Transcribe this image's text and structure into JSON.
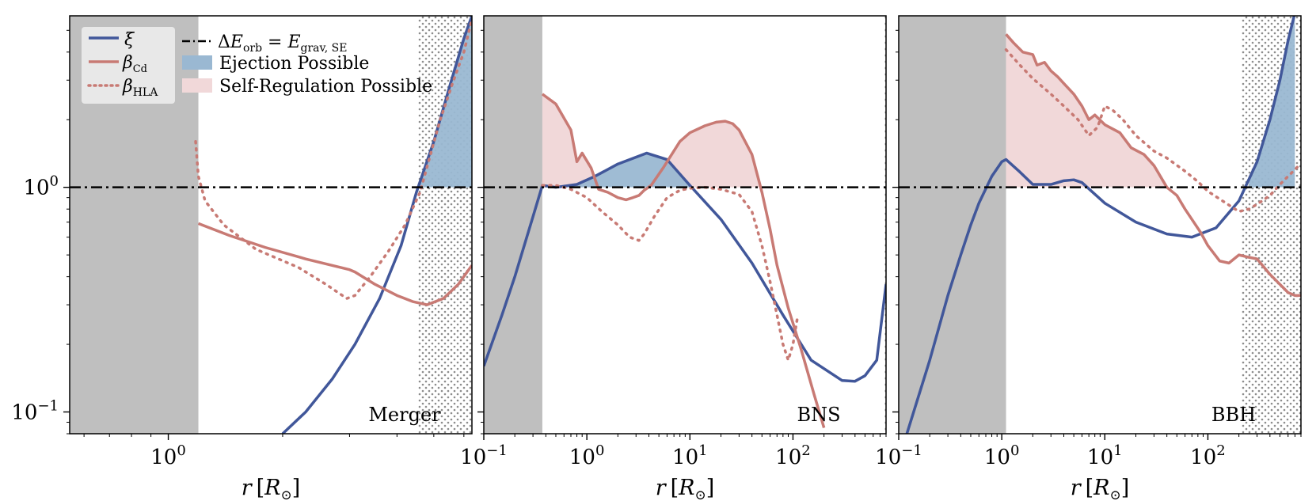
{
  "chart_data": [
    {
      "type": "line",
      "panel": "Merger",
      "label": "Merger",
      "xscale": "log",
      "yscale": "log",
      "xlim": [
        0.55,
        6.3
      ],
      "ylim": [
        0.08,
        5.8
      ],
      "xticks": [
        {
          "value": 1,
          "base": "10",
          "exp": "0"
        }
      ],
      "yticks": [
        {
          "value": 1,
          "base": "10",
          "exp": "0"
        },
        {
          "value": 0.1,
          "base": "10",
          "exp": "−1"
        }
      ],
      "ylabels_visible": true,
      "xlabel": {
        "main": "r",
        "open": "[",
        "sub": "R",
        "sym": "⊙",
        "close": "]"
      },
      "reference_line": 1.0,
      "grey_band": [
        0.55,
        1.2
      ],
      "dotted_band": [
        4.55,
        6.3
      ],
      "ejection_region": [
        4.55,
        6.3
      ],
      "self_regulation_region": null,
      "series": [
        {
          "name": "ξ",
          "style": "solid",
          "color": "#41579a",
          "x": [
            2.0,
            2.3,
            2.7,
            3.1,
            3.6,
            4.1,
            4.5,
            5.0,
            5.5,
            6.0,
            6.3
          ],
          "y": [
            0.08,
            0.1,
            0.14,
            0.2,
            0.32,
            0.55,
            0.95,
            1.6,
            2.8,
            4.6,
            5.8
          ]
        },
        {
          "name": "βCd",
          "style": "solid",
          "color": "#c87a74",
          "x": [
            1.2,
            1.45,
            1.8,
            2.3,
            3.0,
            3.1,
            3.5,
            4.0,
            4.4,
            4.8,
            5.3,
            5.8,
            6.3
          ],
          "y": [
            0.69,
            0.61,
            0.54,
            0.48,
            0.43,
            0.42,
            0.37,
            0.33,
            0.31,
            0.3,
            0.32,
            0.37,
            0.45
          ]
        },
        {
          "name": "βHLA",
          "style": "dotted",
          "color": "#c87a74",
          "x": [
            1.18,
            1.2,
            1.25,
            1.4,
            1.7,
            2.2,
            2.6,
            2.95,
            3.1,
            3.4,
            3.8,
            4.2,
            4.6,
            4.9,
            5.2,
            5.6,
            6.0,
            6.3
          ],
          "y": [
            1.6,
            1.12,
            0.87,
            0.68,
            0.53,
            0.44,
            0.37,
            0.32,
            0.33,
            0.4,
            0.52,
            0.68,
            0.95,
            1.4,
            2.0,
            2.9,
            4.0,
            5.6
          ]
        }
      ]
    },
    {
      "type": "line",
      "panel": "BNS",
      "label": "BNS",
      "xscale": "log",
      "yscale": "log",
      "xlim": [
        0.1,
        800
      ],
      "ylim": [
        0.08,
        5.8
      ],
      "xticks": [
        {
          "value": 0.1,
          "base": "10",
          "exp": "−1"
        },
        {
          "value": 1,
          "base": "10",
          "exp": "0"
        },
        {
          "value": 10,
          "base": "10",
          "exp": "1"
        },
        {
          "value": 100,
          "base": "10",
          "exp": "2"
        }
      ],
      "yticks": [
        {
          "value": 1,
          "base": "",
          "exp": ""
        },
        {
          "value": 0.1,
          "base": "",
          "exp": ""
        }
      ],
      "ylabels_visible": false,
      "xlabel": {
        "main": "r",
        "open": "[",
        "sub": "R",
        "sym": "⊙",
        "close": "]"
      },
      "reference_line": 1.0,
      "grey_band": [
        0.1,
        0.37
      ],
      "dotted_band": [
        780,
        800
      ],
      "ejection_region": [
        0.37,
        12
      ],
      "self_regulation_region": [
        0.37,
        70
      ],
      "series": [
        {
          "name": "ξ",
          "style": "solid",
          "color": "#41579a",
          "x": [
            0.1,
            0.15,
            0.2,
            0.3,
            0.37,
            0.5,
            0.8,
            1.2,
            2.0,
            3.8,
            6.0,
            10,
            20,
            40,
            80,
            150,
            300,
            400,
            500,
            650,
            800
          ],
          "y": [
            0.16,
            0.27,
            0.4,
            0.74,
            1.02,
            1.0,
            1.03,
            1.12,
            1.27,
            1.42,
            1.33,
            1.02,
            0.72,
            0.46,
            0.27,
            0.17,
            0.138,
            0.137,
            0.145,
            0.17,
            0.37
          ]
        },
        {
          "name": "βCd",
          "style": "solid",
          "color": "#c87a74",
          "x": [
            0.37,
            0.5,
            0.7,
            0.8,
            0.9,
            1.1,
            1.3,
            1.6,
            2.0,
            2.4,
            2.8,
            3.2,
            3.6,
            4.2,
            5.5,
            8,
            10,
            14,
            18,
            22,
            26,
            30,
            40,
            50,
            60,
            70,
            90,
            120,
            160,
            200
          ],
          "y": [
            2.6,
            2.35,
            1.8,
            1.3,
            1.42,
            1.22,
            0.98,
            0.95,
            0.9,
            0.88,
            0.9,
            0.92,
            0.97,
            1.02,
            1.22,
            1.6,
            1.75,
            1.88,
            1.95,
            1.97,
            1.92,
            1.8,
            1.4,
            0.95,
            0.65,
            0.45,
            0.29,
            0.19,
            0.12,
            0.085
          ]
        },
        {
          "name": "βHLA",
          "style": "dotted",
          "color": "#c87a74",
          "x": [
            0.37,
            0.5,
            0.7,
            1.0,
            1.4,
            2.0,
            2.6,
            3.2,
            3.6,
            4.5,
            6,
            8,
            10,
            14,
            20,
            30,
            40,
            50,
            60,
            70,
            80,
            90,
            100,
            110
          ],
          "y": [
            1.02,
            1.02,
            0.98,
            0.9,
            0.78,
            0.68,
            0.6,
            0.58,
            0.62,
            0.74,
            0.9,
            0.97,
            0.99,
            1.0,
            0.98,
            0.93,
            0.78,
            0.55,
            0.38,
            0.27,
            0.2,
            0.17,
            0.2,
            0.26
          ]
        }
      ]
    },
    {
      "type": "line",
      "panel": "BBH",
      "label": "BBH",
      "xscale": "log",
      "yscale": "log",
      "xlim": [
        0.1,
        800
      ],
      "ylim": [
        0.08,
        5.8
      ],
      "xticks": [
        {
          "value": 0.1,
          "base": "10",
          "exp": "−1"
        },
        {
          "value": 1,
          "base": "10",
          "exp": "0"
        },
        {
          "value": 10,
          "base": "10",
          "exp": "1"
        },
        {
          "value": 100,
          "base": "10",
          "exp": "2"
        }
      ],
      "yticks": [
        {
          "value": 1,
          "base": "",
          "exp": ""
        },
        {
          "value": 0.1,
          "base": "",
          "exp": ""
        }
      ],
      "ylabels_visible": false,
      "xlabel": {
        "main": "r",
        "open": "[",
        "sub": "R",
        "sym": "⊙",
        "close": "]"
      },
      "reference_line": 1.0,
      "grey_band": [
        0.1,
        1.1
      ],
      "dotted_band": [
        210,
        800
      ],
      "ejection_region": [
        250,
        800
      ],
      "self_regulation_region": [
        1.1,
        40
      ],
      "series": [
        {
          "name": "ξ",
          "style": "solid",
          "color": "#41579a",
          "x": [
            0.12,
            0.2,
            0.3,
            0.4,
            0.5,
            0.6,
            0.8,
            1.0,
            1.1,
            1.5,
            2.0,
            3.0,
            4.0,
            5.0,
            6.0,
            10,
            20,
            40,
            70,
            120,
            200,
            300,
            400,
            500,
            600,
            700
          ],
          "y": [
            0.08,
            0.17,
            0.33,
            0.5,
            0.68,
            0.85,
            1.12,
            1.3,
            1.33,
            1.17,
            1.03,
            1.03,
            1.07,
            1.08,
            1.05,
            0.85,
            0.7,
            0.62,
            0.6,
            0.66,
            0.87,
            1.3,
            2.0,
            3.0,
            4.5,
            6.0
          ]
        },
        {
          "name": "βCd",
          "style": "solid",
          "color": "#c87a74",
          "x": [
            1.1,
            1.3,
            1.6,
            2.0,
            2.2,
            2.6,
            3.0,
            3.5,
            4.0,
            5.0,
            6.0,
            7.0,
            8.0,
            10,
            14,
            18,
            24,
            30,
            40,
            50,
            60,
            70,
            85,
            100,
            130,
            160,
            200,
            240,
            300,
            400,
            500,
            600,
            700,
            800
          ],
          "y": [
            4.8,
            4.4,
            4.0,
            3.9,
            3.5,
            3.6,
            3.3,
            3.1,
            2.9,
            2.6,
            2.3,
            2.0,
            2.1,
            1.9,
            1.75,
            1.5,
            1.4,
            1.25,
            1.0,
            0.92,
            0.8,
            0.72,
            0.63,
            0.55,
            0.47,
            0.46,
            0.5,
            0.49,
            0.48,
            0.41,
            0.37,
            0.34,
            0.33,
            0.33
          ]
        },
        {
          "name": "βHLA",
          "style": "dotted",
          "color": "#c87a74",
          "x": [
            1.1,
            1.5,
            2.0,
            3.0,
            4.0,
            5.5,
            7.0,
            8.5,
            10,
            12,
            15,
            20,
            30,
            40,
            60,
            80,
            100,
            150,
            200,
            250,
            300,
            400,
            500,
            600,
            700,
            800
          ],
          "y": [
            4.1,
            3.5,
            3.05,
            2.6,
            2.3,
            2.0,
            1.7,
            1.85,
            2.3,
            2.2,
            2.0,
            1.7,
            1.45,
            1.35,
            1.18,
            1.06,
            0.96,
            0.85,
            0.78,
            0.8,
            0.84,
            0.92,
            1.03,
            1.12,
            1.2,
            1.28
          ]
        }
      ]
    }
  ],
  "legend": {
    "left": [
      {
        "symbol": "ξ",
        "sub": ""
      },
      {
        "symbol": "β",
        "sub": "Cd"
      },
      {
        "symbol": "β",
        "sub": "HLA"
      }
    ],
    "right": [
      {
        "pre": "Δ",
        "lhs": "E",
        "lhs_sub": "orb",
        "eq": " = ",
        "rhs": "E",
        "rhs_sub": "grav, SE"
      },
      {
        "label": "Ejection Possible"
      },
      {
        "label": "Self-Regulation Possible"
      }
    ]
  },
  "colors": {
    "xi": "#41579a",
    "beta": "#c87a74",
    "ejection_fill": "#9ab8d2",
    "self_regulation_fill": "#f1d8d9",
    "grey_band": "#bfbfbf",
    "reference": "#000000"
  }
}
